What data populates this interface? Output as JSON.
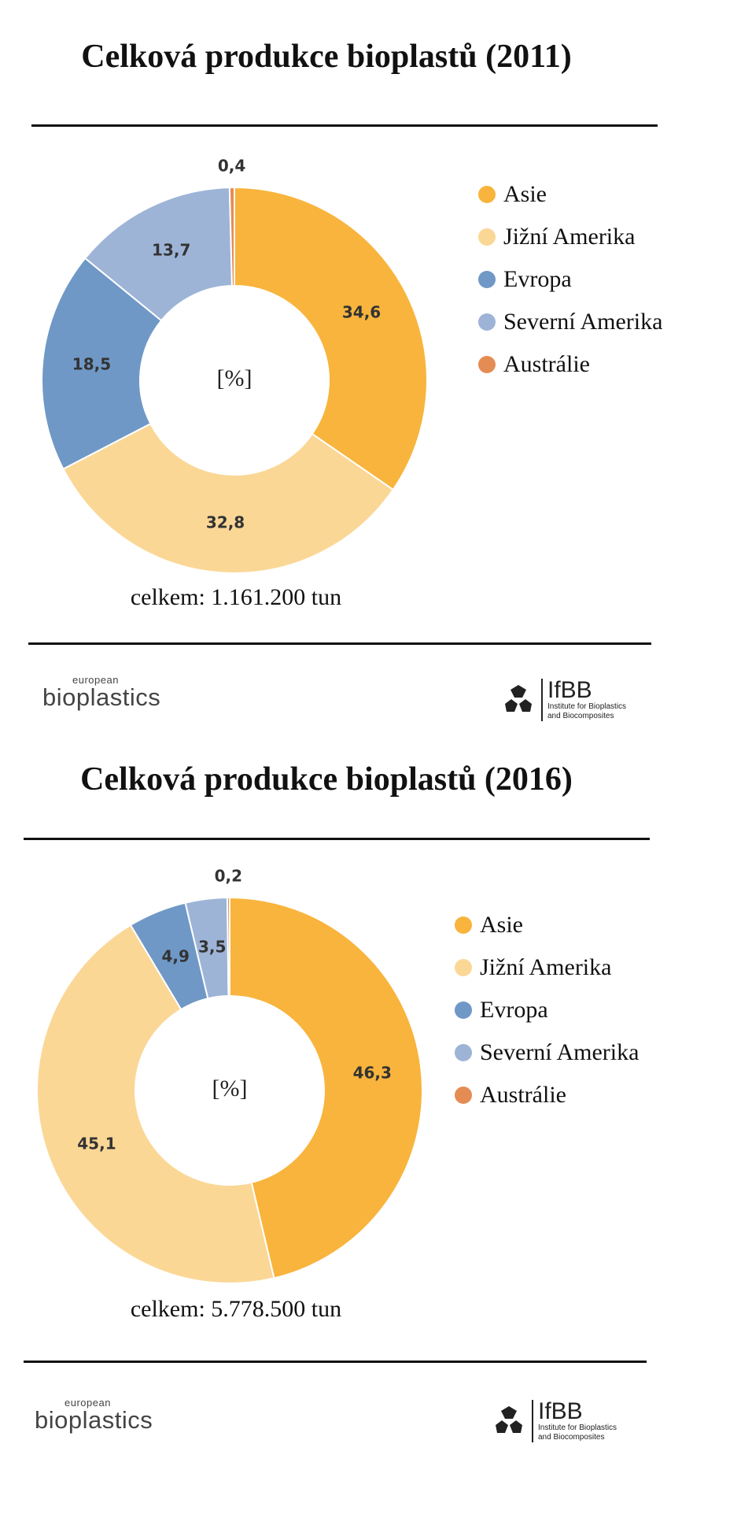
{
  "legend_colors": [
    "#F8B43C",
    "#FBD796",
    "#6F98C6",
    "#9DB4D7",
    "#E58C54"
  ],
  "logos": {
    "eb_small": "european",
    "eb_big": "bioplastics",
    "ifbb_name": "IfBB",
    "ifbb_tag1": "Institute for Bioplastics",
    "ifbb_tag2": "and Biocomposites"
  },
  "chart_data": [
    {
      "type": "pie",
      "title": "Celková produkce bioplastů (2011)",
      "center_label": "[%]",
      "categories": [
        "Asie",
        "Jižní Amerika",
        "Evropa",
        "Severní Amerika",
        "Austrálie"
      ],
      "values": [
        34.6,
        32.8,
        18.5,
        13.7,
        0.4
      ],
      "value_labels": [
        "34,6",
        "32,8",
        "18,5",
        "13,7",
        "0,4"
      ],
      "total": "celkem: 1.161.200 tun",
      "legend_position": "right"
    },
    {
      "type": "pie",
      "title": "Celková produkce bioplastů (2016)",
      "center_label": "[%]",
      "categories": [
        "Asie",
        "Jižní Amerika",
        "Evropa",
        "Severní Amerika",
        "Austrálie"
      ],
      "values": [
        46.3,
        45.1,
        4.9,
        3.5,
        0.2
      ],
      "value_labels": [
        "46,3",
        "45,1",
        "4,9",
        "3,5",
        "0,2"
      ],
      "total": "celkem: 5.778.500 tun",
      "legend_position": "right"
    }
  ]
}
